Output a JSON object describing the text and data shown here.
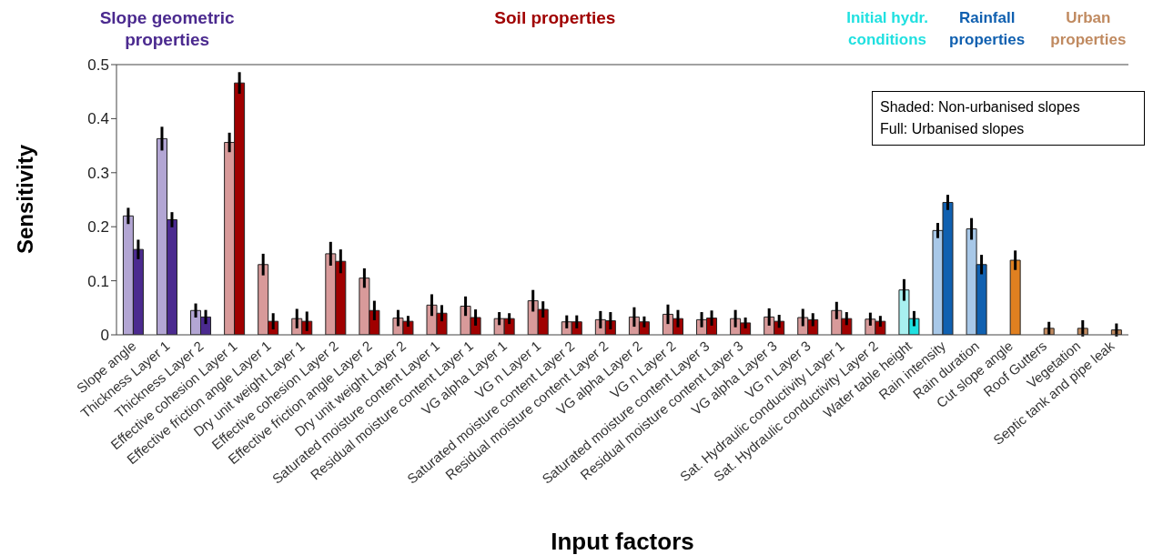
{
  "chart_data": {
    "type": "bar",
    "xlabel": "Input factors",
    "ylabel": "Sensitivity",
    "categories": [
      "Slope angle",
      "Thickness Layer 1",
      "Thickness Layer 2",
      "Effective cohesion Layer 1",
      "Effective friction angle Layer 1",
      "Dry unit weight Layer 1",
      "Effective cohesion Layer 2",
      "Effective friction angle Layer 2",
      "Dry unit weight Layer 2",
      "Saturated moisture content Layer 1",
      "Residual moisture content Layer 1",
      "VG alpha Layer 1",
      "VG n Layer 1",
      "Saturated moisture content Layer 2",
      "Residual moisture content Layer 2",
      "VG alpha Layer 2",
      "VG n Layer 2",
      "Saturated moisture content Layer 3",
      "Residual moisture content Layer 3",
      "VG alpha Layer 3",
      "VG n Layer 3",
      "Sat. Hydraulic conductivity Layer 1",
      "Sat. Hydraulic conductivity Layer 2",
      "Water table height",
      "Rain intensity",
      "Rain duration",
      "Cut slope angle",
      "Roof Gutters",
      "Vegetation",
      "Septic tank and pipe leak"
    ],
    "series": [
      {
        "colors": [
          "#b3a6d4",
          "#b3a6d4",
          "#b3a6d4",
          "#d89a9a",
          "#d89a9a",
          "#d89a9a",
          "#d89a9a",
          "#d89a9a",
          "#d89a9a",
          "#d89a9a",
          "#d89a9a",
          "#d89a9a",
          "#d89a9a",
          "#d89a9a",
          "#d89a9a",
          "#d89a9a",
          "#d89a9a",
          "#d89a9a",
          "#d89a9a",
          "#d89a9a",
          "#d89a9a",
          "#d89a9a",
          "#d89a9a",
          "#a8f0f0",
          "#a8c8e8",
          "#a8c8e8",
          null,
          null,
          null,
          null
        ],
        "values": [
          0.22,
          0.363,
          0.045,
          0.356,
          0.13,
          0.03,
          0.15,
          0.105,
          0.031,
          0.055,
          0.053,
          0.03,
          0.063,
          0.024,
          0.028,
          0.033,
          0.038,
          0.028,
          0.03,
          0.033,
          0.032,
          0.045,
          0.029,
          0.083,
          0.193,
          0.196,
          null,
          null,
          null,
          null
        ],
        "errors": [
          0.015,
          0.022,
          0.013,
          0.018,
          0.02,
          0.018,
          0.022,
          0.018,
          0.015,
          0.02,
          0.018,
          0.012,
          0.02,
          0.012,
          0.016,
          0.018,
          0.018,
          0.014,
          0.016,
          0.016,
          0.016,
          0.016,
          0.012,
          0.02,
          0.014,
          0.02,
          null,
          null,
          null,
          null
        ]
      },
      {
        "colors": [
          "#4b2a8f",
          "#4b2a8f",
          "#4b2a8f",
          "#a00000",
          "#a00000",
          "#a00000",
          "#a00000",
          "#a00000",
          "#a00000",
          "#a00000",
          "#a00000",
          "#a00000",
          "#a00000",
          "#a00000",
          "#a00000",
          "#a00000",
          "#a00000",
          "#a00000",
          "#a00000",
          "#a00000",
          "#a00000",
          "#a00000",
          "#a00000",
          "#20e0e0",
          "#1060b0",
          "#1060b0",
          "#e08020",
          "#c08a60",
          "#c08a60",
          "#c08a60"
        ],
        "values": [
          0.158,
          0.213,
          0.033,
          0.466,
          0.025,
          0.025,
          0.136,
          0.045,
          0.025,
          0.04,
          0.032,
          0.03,
          0.047,
          0.024,
          0.026,
          0.024,
          0.03,
          0.031,
          0.022,
          0.025,
          0.028,
          0.03,
          0.025,
          0.03,
          0.245,
          0.13,
          0.138,
          0.012,
          0.012,
          0.009
        ],
        "errors": [
          0.018,
          0.014,
          0.013,
          0.02,
          0.015,
          0.018,
          0.022,
          0.018,
          0.01,
          0.015,
          0.015,
          0.01,
          0.015,
          0.012,
          0.016,
          0.01,
          0.016,
          0.014,
          0.01,
          0.012,
          0.012,
          0.012,
          0.01,
          0.014,
          0.014,
          0.018,
          0.018,
          0.012,
          0.015,
          0.012
        ]
      }
    ],
    "ylim": [
      0,
      0.5
    ],
    "yticks": [
      0,
      0.1,
      0.2,
      0.3,
      0.4,
      0.5
    ],
    "annotations": [
      "Slope geometric properties",
      "Soil properties",
      "Initial hydr. conditions",
      "Rainfall properties",
      "Urban properties",
      "Shaded: Non-urbanised slopes",
      "Full: Urbanised slopes"
    ]
  }
}
